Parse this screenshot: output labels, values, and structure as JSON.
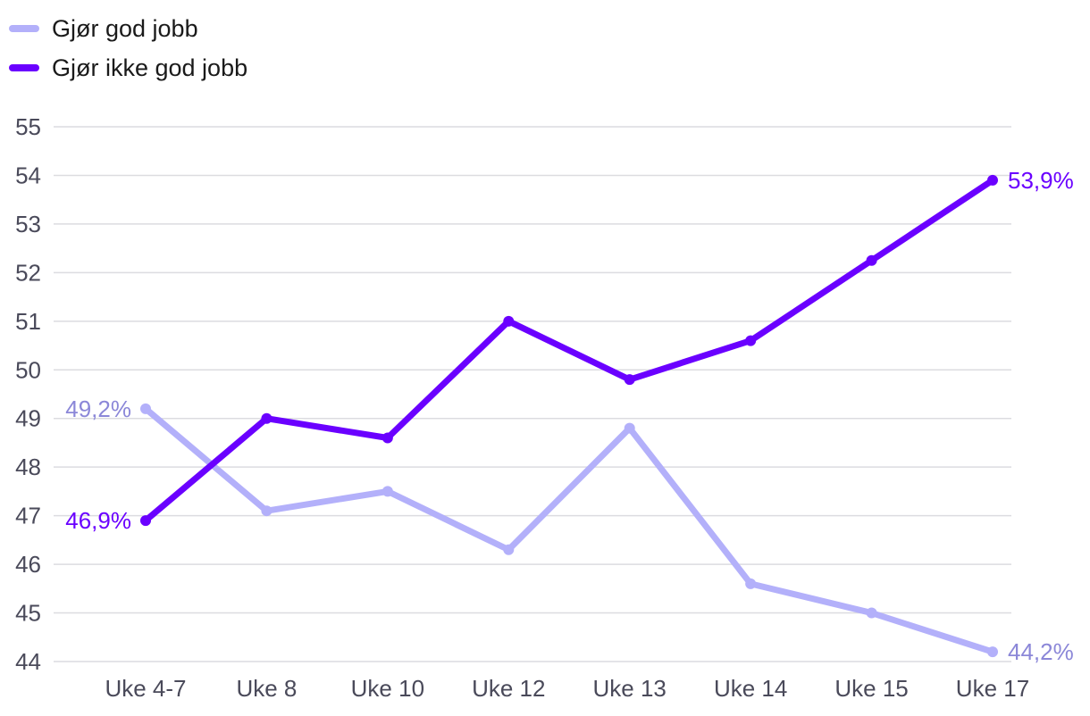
{
  "chart_data": {
    "type": "line",
    "categories": [
      "Uke 4-7",
      "Uke 8",
      "Uke 10",
      "Uke 12",
      "Uke 13",
      "Uke 14",
      "Uke 15",
      "Uke 17"
    ],
    "series": [
      {
        "name": "Gjør god jobb",
        "color": "#b3b0fa",
        "label_color": "#8b87d8",
        "values": [
          49.2,
          47.1,
          47.5,
          46.3,
          48.8,
          45.6,
          45.0,
          44.2
        ],
        "start_label": "49,2%",
        "end_label": "44,2%"
      },
      {
        "name": "Gjør ikke god jobb",
        "color": "#6a00ff",
        "label_color": "#6a00ff",
        "values": [
          46.9,
          49.0,
          48.6,
          51.0,
          49.8,
          50.6,
          52.25,
          53.9
        ],
        "start_label": "46,9%",
        "end_label": "53,9%"
      }
    ],
    "yticks": [
      "44",
      "45",
      "46",
      "47",
      "48",
      "49",
      "50",
      "51",
      "52",
      "53",
      "54",
      "55"
    ],
    "ylim": [
      44,
      55
    ],
    "xlabel": "",
    "ylabel": "",
    "grid": true,
    "legend_position": "top-left"
  }
}
